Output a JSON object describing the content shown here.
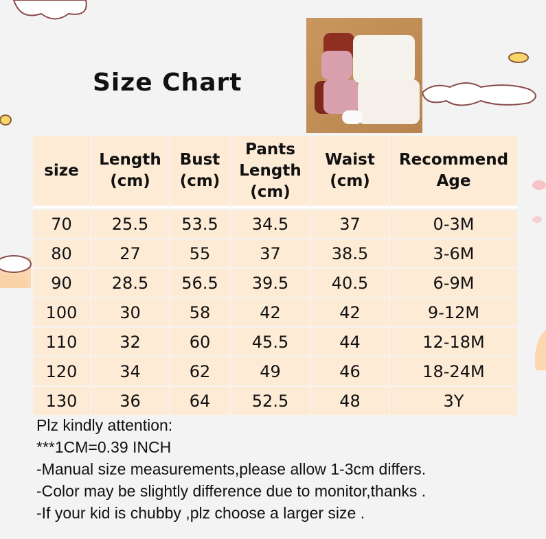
{
  "title": "Size Chart",
  "table": {
    "headers": [
      [
        "size"
      ],
      [
        "Length",
        "(cm)"
      ],
      [
        "Bust",
        "(cm)"
      ],
      [
        "Pants",
        "Length",
        "(cm)"
      ],
      [
        "Waist",
        "(cm)"
      ],
      [
        "Recommend",
        "Age"
      ]
    ],
    "rows": [
      [
        "70",
        "25.5",
        "53.5",
        "34.5",
        "37",
        "0-3M"
      ],
      [
        "80",
        "27",
        "55",
        "37",
        "38.5",
        "3-6M"
      ],
      [
        "90",
        "28.5",
        "56.5",
        "39.5",
        "40.5",
        "6-9M"
      ],
      [
        "100",
        "30",
        "58",
        "42",
        "42",
        "9-12M"
      ],
      [
        "110",
        "32",
        "60",
        "45.5",
        "44",
        "12-18M"
      ],
      [
        "120",
        "34",
        "62",
        "49",
        "46",
        "18-24M"
      ],
      [
        "130",
        "36",
        "64",
        "52.5",
        "48",
        "3Y"
      ]
    ]
  },
  "notes": [
    " Plz kindly attention:",
    "***1CM=0.39 INCH",
    "-Manual size measurements,please allow 1-3cm differs.",
    "-Color may be slightly difference due to monitor,thanks .",
    "-If your kid is chubby ,plz choose a larger size ."
  ],
  "colors": {
    "background": "#f4f3f3",
    "cell": "#fdebd6",
    "text": "#111111"
  }
}
